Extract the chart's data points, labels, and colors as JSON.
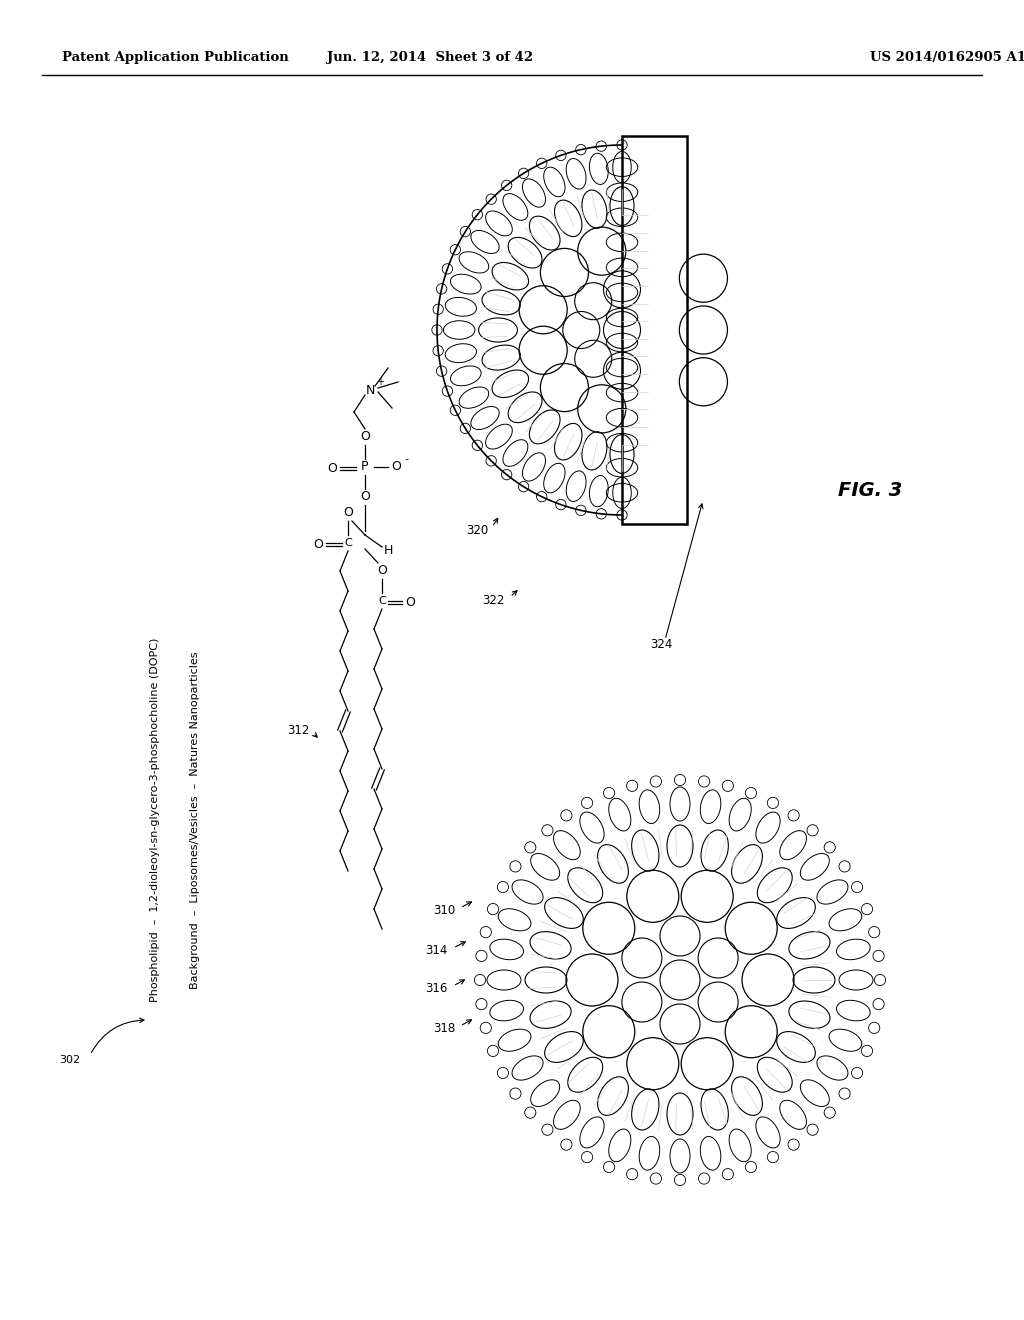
{
  "bg_color": "#ffffff",
  "header_left": "Patent Application Publication",
  "header_center": "Jun. 12, 2014  Sheet 3 of 42",
  "header_right": "US 2014/0162905 A1",
  "fig_label": "FIG. 3",
  "legend_line1": "Background  –  Liposomes/Vesicles  –  Natures Nanoparticles",
  "legend_line2": "Phospholipid  –  1,2-dioleoyl-sn-glycero-3-phosphocholine (DOPC)"
}
